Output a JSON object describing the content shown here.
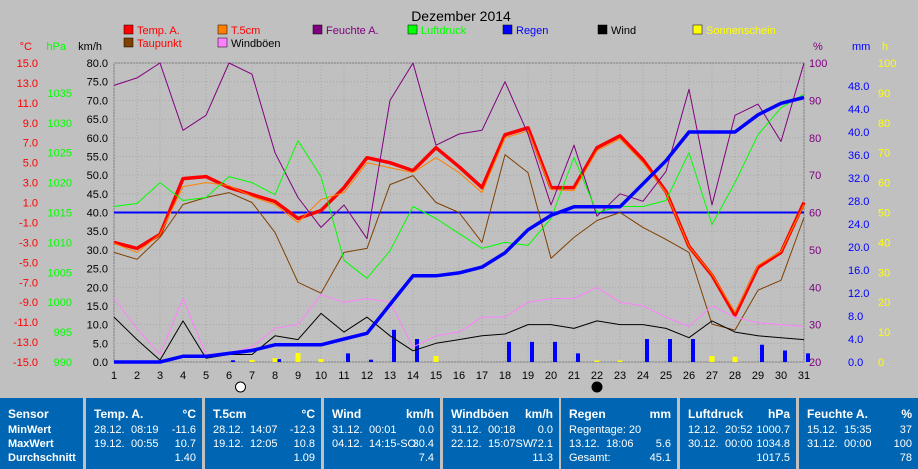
{
  "chart_data": {
    "type": "line",
    "title": "Dezember 2014",
    "x": [
      1,
      2,
      3,
      4,
      5,
      6,
      7,
      8,
      9,
      10,
      11,
      12,
      13,
      14,
      15,
      16,
      17,
      18,
      19,
      20,
      21,
      22,
      23,
      24,
      25,
      26,
      27,
      28,
      29,
      30,
      31
    ],
    "axes": {
      "temp": {
        "unit": "°C",
        "min": -15,
        "max": 15,
        "ticks": [
          "15.0",
          "13.0",
          "11.0",
          "9.0",
          "7.0",
          "5.0",
          "3.0",
          "1.0",
          "-1.0",
          "-3.0",
          "-5.0",
          "-7.0",
          "-9.0",
          "-11.0",
          "-13.0",
          "-15.0"
        ],
        "color": "#ff0000"
      },
      "pressure": {
        "unit": "hPa",
        "min": 990,
        "max": 1040,
        "ticks": [
          "1035",
          "1030",
          "1025",
          "1020",
          "1015",
          "1010",
          "1005",
          "1000",
          "995",
          "990"
        ],
        "color": "#00ff00"
      },
      "wind": {
        "unit": "km/h",
        "min": 0,
        "max": 80,
        "ticks": [
          "80.0",
          "75.0",
          "70.0",
          "65.0",
          "60.0",
          "55.0",
          "50.0",
          "45.0",
          "40.0",
          "35.0",
          "30.0",
          "25.0",
          "20.0",
          "15.0",
          "10.0",
          "5.0",
          "0.0"
        ],
        "color": "#000000"
      },
      "humidity": {
        "unit": "%",
        "min": 20,
        "max": 100,
        "ticks": [
          "100",
          "90",
          "80",
          "70",
          "60",
          "50",
          "40",
          "30",
          "20"
        ],
        "color": "#800080"
      },
      "rain": {
        "unit": "mm",
        "min": 0,
        "max": 52,
        "ticks": [
          "48.0",
          "44.0",
          "40.0",
          "36.0",
          "32.0",
          "28.0",
          "24.0",
          "20.0",
          "16.0",
          "12.0",
          "8.0",
          "4.0",
          "0.0"
        ],
        "color": "#0000ff"
      },
      "sun": {
        "unit": "h",
        "min": 0,
        "max": 100,
        "ticks": [
          "100",
          "90",
          "80",
          "70",
          "60",
          "50",
          "40",
          "30",
          "20",
          "10",
          "0"
        ],
        "color": "#ffff00"
      }
    },
    "legend": [
      {
        "label": "Temp. A.",
        "color": "#ff0000",
        "text_color": "#ff0000"
      },
      {
        "label": "T.5cm",
        "color": "#ff8000",
        "text_color": "#ff0000"
      },
      {
        "label": "Feuchte A.",
        "color": "#800080",
        "text_color": "#800080"
      },
      {
        "label": "Luftdruck",
        "color": "#00ff00",
        "text_color": "#00ff00"
      },
      {
        "label": "Regen",
        "color": "#0000ff",
        "text_color": "#0000ff"
      },
      {
        "label": "Wind",
        "color": "#000000",
        "text_color": "#000000"
      },
      {
        "label": "Sonnenschein",
        "color": "#ffff00",
        "text_color": "#ffff00"
      },
      {
        "label": "Taupunkt",
        "color": "#804000",
        "text_color": "#ff0000"
      },
      {
        "label": "Windböen",
        "color": "#ff80ff",
        "text_color": "#000000"
      }
    ],
    "moon_markers": [
      {
        "day": 6.5,
        "phase": "full"
      },
      {
        "day": 22,
        "phase": "new"
      }
    ],
    "series": [
      {
        "name": "Temp. A.",
        "axis": "temp",
        "color": "#ff0000",
        "values": [
          -3.0,
          -3.6,
          -2.2,
          3.4,
          3.6,
          2.5,
          1.8,
          1.1,
          -0.6,
          0.2,
          2.5,
          5.5,
          5.0,
          4.2,
          6.5,
          4.6,
          2.5,
          7.8,
          8.5,
          2.5,
          2.5,
          6.5,
          7.7,
          5.3,
          2.1,
          -3.4,
          -6.3,
          -10.3,
          -5.5,
          -4.0,
          1.0
        ]
      },
      {
        "name": "T.5cm",
        "axis": "temp",
        "color": "#ff8000",
        "values": [
          -3.1,
          -4.0,
          -2.2,
          2.6,
          3.0,
          2.7,
          1.6,
          0.8,
          -1.0,
          1.3,
          2.0,
          5.0,
          4.5,
          4.0,
          5.5,
          4.0,
          2.0,
          7.5,
          8.2,
          2.3,
          2.2,
          6.2,
          7.4,
          5.0,
          2.0,
          -3.4,
          -6.2,
          -10.0,
          -5.3,
          -3.9,
          0.8
        ]
      },
      {
        "name": "Taupunkt",
        "axis": "temp",
        "color": "#804000",
        "values": [
          -4.0,
          -4.7,
          -2.5,
          0.8,
          1.5,
          2.0,
          1.0,
          -2.0,
          -7.0,
          -8.1,
          -4.0,
          -3.6,
          2.8,
          3.7,
          1.0,
          0.0,
          -3.0,
          5.8,
          4.0,
          -4.6,
          -2.5,
          -0.8,
          0.0,
          -1.5,
          -2.7,
          -4.0,
          -11.2,
          -11.8,
          -7.8,
          -6.8,
          -0.5
        ]
      },
      {
        "name": "Feuchte A.",
        "axis": "humidity",
        "color": "#800080",
        "values": [
          94,
          96,
          100,
          82,
          86,
          100,
          97,
          76,
          64,
          56,
          62,
          53,
          90,
          100,
          78,
          81,
          82,
          95,
          81,
          62,
          78,
          59,
          65,
          63,
          71,
          93,
          62,
          86,
          89,
          79,
          100
        ]
      },
      {
        "name": "Luftdruck",
        "axis": "pressure",
        "color": "#00ff00",
        "values": [
          1016,
          1016.5,
          1020,
          1017,
          1017.5,
          1021,
          1020,
          1018,
          1027,
          1021,
          1007,
          1004,
          1008.6,
          1016,
          1014,
          1011.5,
          1009,
          1010,
          1009.5,
          1014,
          1024.2,
          1015,
          1016,
          1016,
          1017,
          1025,
          1013,
          1020,
          1028,
          1032.5,
          1034.8
        ]
      },
      {
        "name": "Wind",
        "axis": "wind",
        "color": "#000000",
        "values": [
          12,
          6,
          0.5,
          11,
          1,
          2,
          2,
          7,
          6,
          13,
          8,
          12,
          7,
          3,
          5,
          6,
          7,
          7.5,
          10,
          10,
          9,
          11,
          10,
          10,
          9,
          6.5,
          11,
          8,
          7,
          6.5,
          6
        ]
      },
      {
        "name": "Windböen",
        "axis": "wind",
        "color": "#ff80ff",
        "values": [
          17,
          9,
          2,
          17,
          2,
          2.5,
          4,
          9,
          10,
          18,
          16,
          17,
          16,
          4,
          7,
          8,
          12,
          12,
          16,
          17,
          17,
          20,
          16,
          15,
          12,
          9.5,
          15,
          12,
          10.5,
          10,
          9.5
        ]
      },
      {
        "name": "Regen",
        "axis": "rain",
        "color": "#0000ff",
        "values": [
          0,
          0,
          0,
          1,
          1,
          1.5,
          2,
          3,
          3,
          3,
          4,
          5,
          10,
          15,
          15,
          15.5,
          16.5,
          19,
          23,
          25.5,
          27,
          27,
          27,
          31,
          35,
          40,
          40,
          40,
          43,
          45,
          46
        ]
      }
    ],
    "rain_daily": {
      "axis": "rain",
      "color": "#0000ff",
      "values": [
        0,
        0,
        0,
        0,
        0,
        0.3,
        0,
        0.5,
        0,
        0,
        1.5,
        0.4,
        5.6,
        4.0,
        0,
        0,
        0,
        3.5,
        3.5,
        3.5,
        1.5,
        0,
        0,
        4.0,
        4.0,
        4.0,
        0,
        0,
        3.0,
        2.0,
        1.5
      ]
    },
    "sun_daily": {
      "axis": "sun",
      "color": "#ffff00",
      "values": [
        0,
        0.3,
        0,
        0,
        0,
        0,
        0.7,
        1.3,
        3.0,
        1.0,
        0,
        0,
        0,
        0,
        2.0,
        0,
        0,
        0,
        0,
        0,
        0,
        0.5,
        0.5,
        0,
        0,
        0,
        2.0,
        1.7,
        0,
        0,
        0
      ]
    },
    "reference_line": {
      "axis": "wind",
      "value": 40,
      "color": "#0000ff"
    }
  },
  "table": [
    {
      "title": "Sensor",
      "unit": "",
      "rows": [
        {
          "label": "MinWert"
        },
        {
          "label": "MaxWert"
        },
        {
          "label": "Durchschnitt"
        }
      ]
    },
    {
      "title": "Temp. A.",
      "unit": "°C",
      "rows": [
        {
          "date": "28.12.",
          "time": "08:19",
          "value": "-11.6"
        },
        {
          "date": "19.12.",
          "time": "00:55",
          "value": "10.7"
        },
        {
          "value": "1.40"
        }
      ]
    },
    {
      "title": "T.5cm",
      "unit": "°C",
      "rows": [
        {
          "date": "28.12.",
          "time": "14:07",
          "value": "-12.3"
        },
        {
          "date": "19.12.",
          "time": "12:05",
          "value": "10.8"
        },
        {
          "value": "1.09"
        }
      ]
    },
    {
      "title": "Wind",
      "unit": "km/h",
      "rows": [
        {
          "date": "31.12.",
          "time": "00:01",
          "value": "0.0"
        },
        {
          "date": "04.12.",
          "time": "14:15-SO",
          "value": "30.4"
        },
        {
          "value": "7.4"
        }
      ]
    },
    {
      "title": "Windböen",
      "unit": "km/h",
      "rows": [
        {
          "date": "31.12.",
          "time": "00:18",
          "value": "0.0"
        },
        {
          "date": "22.12.",
          "time": "15:07SW",
          "value": "72.1"
        },
        {
          "value": "11.3"
        }
      ]
    },
    {
      "title": "Regen",
      "unit": "mm",
      "rows": [
        {
          "date": "Regentage: 20",
          "time": "",
          "value": ""
        },
        {
          "date": "13.12.",
          "time": "18:06",
          "value": "5.6"
        },
        {
          "date": "Gesamt:",
          "time": "",
          "value": "45.1"
        }
      ]
    },
    {
      "title": "Luftdruck",
      "unit": "hPa",
      "rows": [
        {
          "date": "12.12.",
          "time": "20:52",
          "value": "1000.7"
        },
        {
          "date": "30.12.",
          "time": "00:00",
          "value": "1034.8"
        },
        {
          "value": "1017.5"
        }
      ]
    },
    {
      "title": "Feuchte A.",
      "unit": "%",
      "rows": [
        {
          "date": "15.12.",
          "time": "15:35",
          "value": "37"
        },
        {
          "date": "31.12.",
          "time": "00:00",
          "value": "100"
        },
        {
          "value": "78"
        }
      ]
    }
  ]
}
